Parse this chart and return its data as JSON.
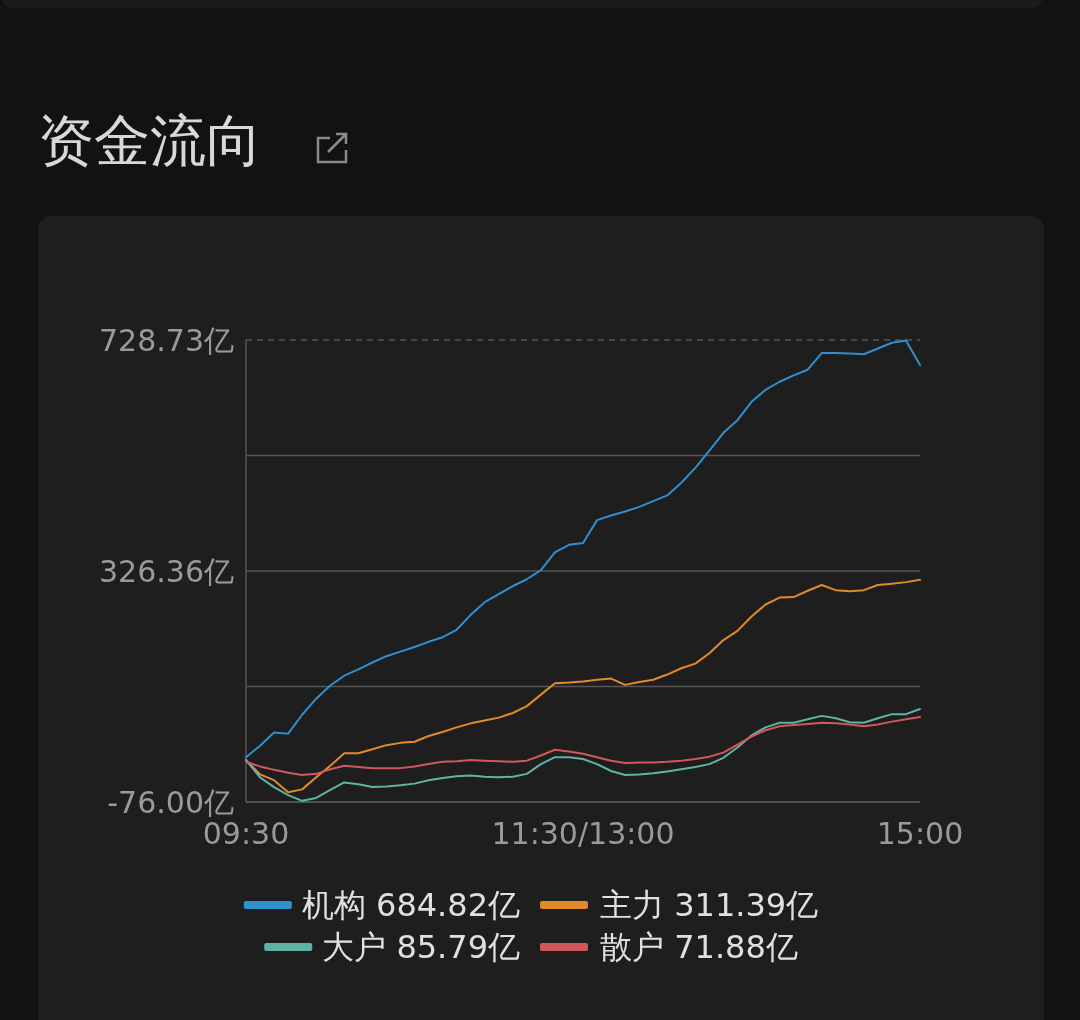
{
  "chart_data": {
    "type": "line",
    "title": "资金流向",
    "categories": [
      "09:30",
      null,
      null,
      null,
      null,
      null,
      null,
      null,
      null,
      null,
      null,
      null,
      null,
      null,
      null,
      null,
      null,
      null,
      null,
      null,
      null,
      null,
      null,
      null,
      "11:30/13:00",
      null,
      null,
      null,
      null,
      null,
      null,
      null,
      null,
      null,
      null,
      null,
      null,
      null,
      null,
      null,
      null,
      null,
      null,
      null,
      null,
      null,
      null,
      null,
      "15:00"
    ],
    "ylim": [
      -76,
      728.73
    ],
    "yticks": [
      {
        "value": 728.73,
        "label": "728.73亿"
      },
      {
        "value": 527.54,
        "label": null
      },
      {
        "value": 326.36,
        "label": "326.36亿"
      },
      {
        "value": 125.18,
        "label": null
      },
      {
        "value": -76,
        "label": "-76.00亿"
      }
    ],
    "grid": "y",
    "legend": "bottom",
    "marker": "none",
    "line_style": "solid",
    "series": [
      {
        "name": "机构 684.82亿",
        "color": "#2f8fcf",
        "values": [
          2,
          22,
          45,
          43,
          76,
          104,
          127,
          144,
          155,
          167,
          178,
          186,
          194,
          203,
          211,
          224,
          250,
          272,
          286,
          300,
          312,
          328,
          359,
          372,
          375,
          415,
          423,
          430,
          438,
          448,
          458,
          480,
          506,
          536,
          567,
          589,
          621,
          642,
          656,
          667,
          677,
          706,
          706,
          705,
          704,
          714,
          724,
          728,
          685
        ]
      },
      {
        "name": "主力 311.39亿",
        "color": "#e08a2a",
        "values": [
          -3,
          -28,
          -38,
          -59,
          -54,
          -33,
          -13,
          9,
          9,
          16,
          23,
          27,
          29,
          39,
          46,
          54,
          61,
          66,
          71,
          79,
          91,
          111,
          131,
          132,
          134,
          137,
          139,
          128,
          133,
          137,
          146,
          157,
          165,
          183,
          206,
          222,
          247,
          268,
          280,
          281,
          292,
          302,
          293,
          291,
          293,
          302,
          304,
          307,
          311
        ]
      },
      {
        "name": "大户 85.79亿",
        "color": "#5fb3a5",
        "values": [
          -3,
          -33,
          -50,
          -64,
          -74,
          -69,
          -55,
          -42,
          -45,
          -50,
          -49,
          -47,
          -44,
          -38,
          -34,
          -31,
          -30,
          -32,
          -33,
          -32,
          -27,
          -10,
          2,
          2,
          -1,
          -10,
          -22,
          -29,
          -28,
          -26,
          -23,
          -19,
          -15,
          -10,
          1,
          19,
          40,
          54,
          62,
          62,
          68,
          74,
          70,
          63,
          62,
          70,
          77,
          77,
          86
        ]
      },
      {
        "name": "散户 71.88亿",
        "color": "#d0585c",
        "values": [
          -6,
          -14,
          -20,
          -25,
          -29,
          -27,
          -19,
          -13,
          -15,
          -17,
          -17,
          -17,
          -14,
          -10,
          -6,
          -5,
          -3,
          -4,
          -5,
          -6,
          -4,
          5,
          15,
          12,
          8,
          2,
          -4,
          -8,
          -7,
          -7,
          -6,
          -4,
          -1,
          3,
          10,
          24,
          38,
          49,
          56,
          58,
          60,
          62,
          61,
          59,
          56,
          59,
          64,
          68,
          72
        ]
      }
    ]
  }
}
